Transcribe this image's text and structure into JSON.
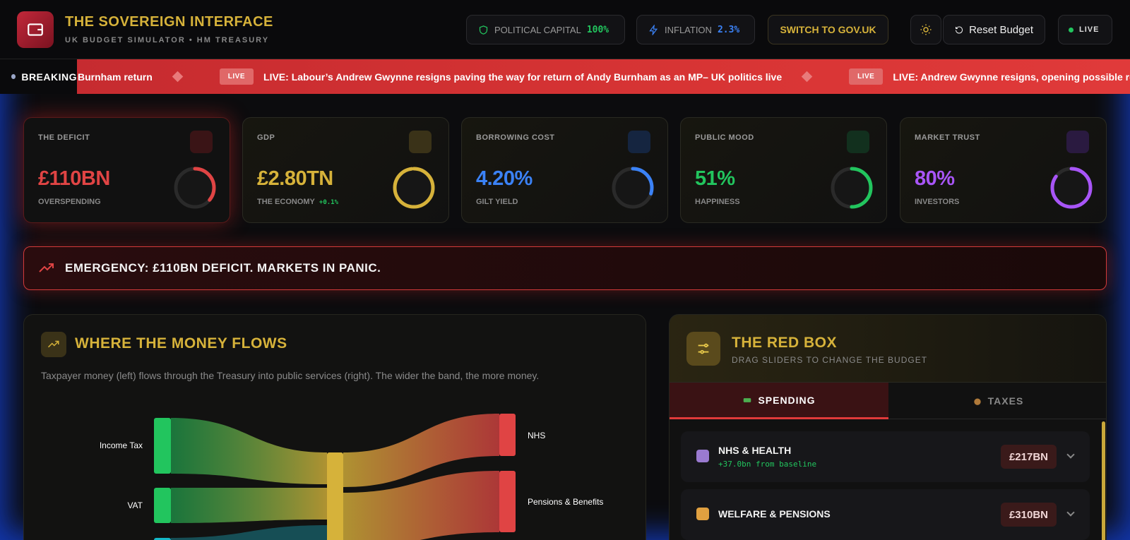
{
  "header": {
    "title": "THE SOVEREIGN INTERFACE",
    "subtitle": "UK BUDGET SIMULATOR • HM TREASURY",
    "stats": [
      {
        "label": "POLITICAL CAPITAL",
        "value": "100%"
      },
      {
        "label": "INFLATION",
        "value": "2.3%"
      }
    ],
    "switch_button": "SWITCH TO GOV.UK",
    "reset_button": "Reset Budget",
    "live_badge": "LIVE"
  },
  "ticker": {
    "label": "BREAKING",
    "items": [
      {
        "text": "Burnham return"
      },
      {
        "badge": "LIVE",
        "text": "LIVE: Labour’s Andrew Gwynne resigns paving the way for return of Andy Burnham as an MP– UK politics live"
      },
      {
        "badge": "LIVE",
        "text": "LIVE: Andrew Gwynne resigns, opening possible route to Co"
      }
    ]
  },
  "kpis": [
    {
      "label": "THE DEFICIT",
      "value": "£110BN",
      "caption": "OVERSPENDING"
    },
    {
      "label": "GDP",
      "value": "£2.80TN",
      "caption": "THE ECONOMY",
      "delta": "+0.1%"
    },
    {
      "label": "BORROWING COST",
      "value": "4.20%",
      "caption": "GILT YIELD"
    },
    {
      "label": "PUBLIC MOOD",
      "value": "51%",
      "caption": "HAPPINESS"
    },
    {
      "label": "MARKET TRUST",
      "value": "80%",
      "caption": "INVESTORS"
    }
  ],
  "alert": "EMERGENCY: £110BN DEFICIT. MARKETS IN PANIC.",
  "flows": {
    "title": "WHERE THE MONEY FLOWS",
    "description": "Taxpayer money (left) flows through the Treasury into public services (right). The wider the band, the more money.",
    "sources": [
      "Income Tax",
      "VAT"
    ],
    "destinations": [
      "NHS",
      "Pensions & Benefits"
    ]
  },
  "red_box": {
    "title": "THE RED BOX",
    "subtitle": "DRAG SLIDERS TO CHANGE THE BUDGET",
    "tabs": [
      "SPENDING",
      "TAXES"
    ],
    "items": [
      {
        "name": "NHS & HEALTH",
        "change": "+37.0bn from baseline",
        "amount": "£217BN"
      },
      {
        "name": "WELFARE & PENSIONS",
        "amount": "£310BN"
      }
    ]
  }
}
